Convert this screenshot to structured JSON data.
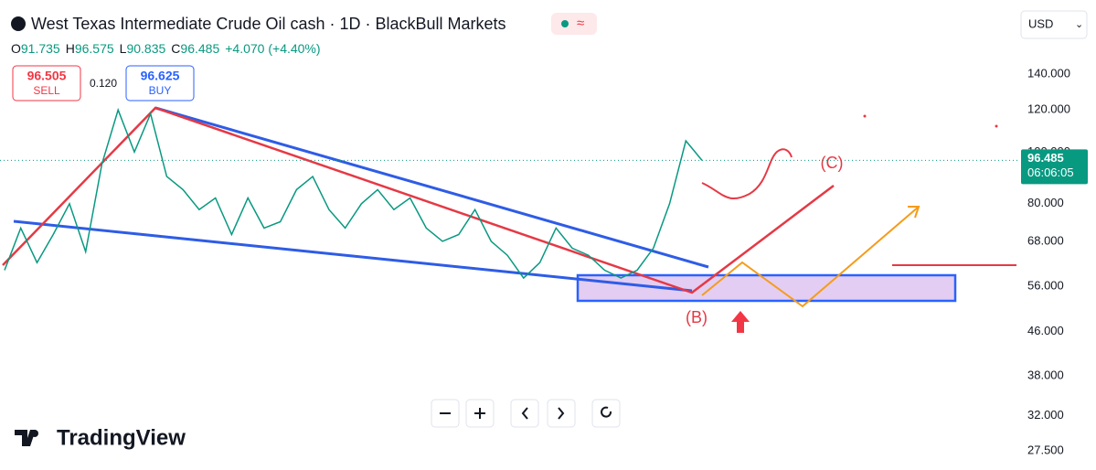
{
  "header": {
    "title": "West Texas Intermediate Crude Oil cash · 1D · BlackBull Markets",
    "ohlc": [
      {
        "label": "O",
        "value": "91.735"
      },
      {
        "label": "H",
        "value": "96.575"
      },
      {
        "label": "L",
        "value": "90.835"
      },
      {
        "label": "C",
        "value": "96.485"
      }
    ],
    "change": "+4.070 (+4.40%)",
    "currency": "USD"
  },
  "trade": {
    "sell_price": "96.505",
    "sell_label": "SELL",
    "spread": "0.120",
    "buy_price": "96.625",
    "buy_label": "BUY"
  },
  "chart_data": {
    "type": "line",
    "color": "#089981",
    "log_scale": true,
    "values": [
      60,
      72,
      62,
      70,
      80,
      65,
      95,
      120,
      100,
      118,
      90,
      85,
      78,
      82,
      70,
      82,
      72,
      74,
      85,
      90,
      78,
      72,
      80,
      85,
      78,
      82,
      72,
      68,
      70,
      78,
      68,
      64,
      58,
      62,
      72,
      66,
      64,
      60,
      58,
      60,
      66,
      80,
      105,
      96.485
    ],
    "ylim": [
      25.8,
      193
    ],
    "yticks": [
      {
        "value": 27.5,
        "label": "27.500"
      },
      {
        "value": 32,
        "label": "32.000"
      },
      {
        "value": 38,
        "label": "38.000"
      },
      {
        "value": 46,
        "label": "46.000"
      },
      {
        "value": 56,
        "label": "56.000"
      },
      {
        "value": 68,
        "label": "68.000"
      },
      {
        "value": 80,
        "label": "80.000"
      },
      {
        "value": 100,
        "label": "100.000"
      },
      {
        "value": 120,
        "label": "120.000"
      },
      {
        "value": 140,
        "label": "140.000"
      }
    ],
    "last_price": 96.485,
    "countdown": "06:06:05",
    "annotations": [
      "(B)",
      "(C)"
    ]
  },
  "brand": "TradingView"
}
